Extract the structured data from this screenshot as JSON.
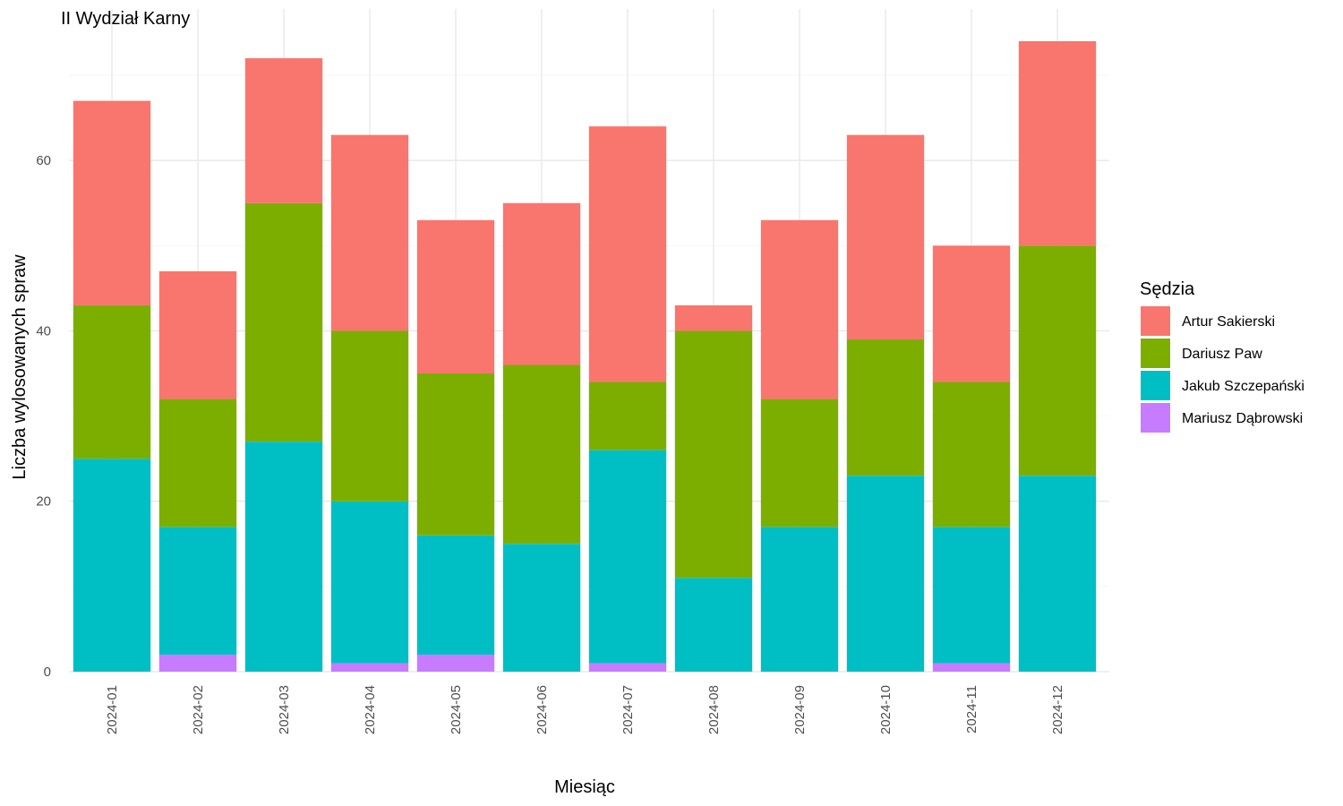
{
  "chart_data": {
    "type": "bar",
    "stacked": true,
    "title": "II Wydział Karny",
    "xlabel": "Miesiąc",
    "ylabel": "Liczba wylosowanych spraw",
    "ylim": [
      0,
      74
    ],
    "yticks": [
      0,
      20,
      40,
      60
    ],
    "grid": true,
    "legend_title": "Sędzia",
    "legend_position": "right",
    "categories": [
      "2024-01",
      "2024-02",
      "2024-03",
      "2024-04",
      "2024-05",
      "2024-06",
      "2024-07",
      "2024-08",
      "2024-09",
      "2024-10",
      "2024-11",
      "2024-12"
    ],
    "series": [
      {
        "name": "Artur Sakierski",
        "color": "#F8766D",
        "values": [
          24,
          15,
          17,
          23,
          18,
          19,
          30,
          3,
          21,
          24,
          16,
          24
        ]
      },
      {
        "name": "Dariusz Paw",
        "color": "#7CAE00",
        "values": [
          18,
          15,
          28,
          20,
          19,
          21,
          8,
          29,
          15,
          16,
          17,
          27
        ]
      },
      {
        "name": "Jakub Szczepański",
        "color": "#00BFC4",
        "values": [
          25,
          15,
          27,
          19,
          14,
          15,
          25,
          11,
          17,
          23,
          16,
          23
        ]
      },
      {
        "name": "Mariusz Dąbrowski",
        "color": "#C77CFF",
        "values": [
          0,
          2,
          0,
          1,
          2,
          0,
          1,
          0,
          0,
          0,
          1,
          0
        ]
      }
    ]
  }
}
